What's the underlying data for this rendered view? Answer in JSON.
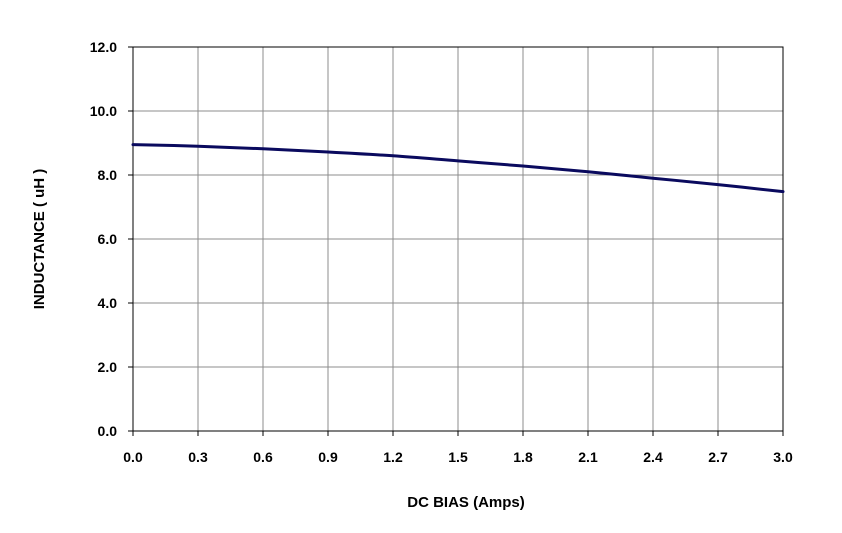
{
  "chart_data": {
    "type": "line",
    "title": "",
    "xlabel": "DC BIAS (Amps)",
    "ylabel": "INDUCTANCE ( uH )",
    "xlim": [
      0.0,
      3.0
    ],
    "ylim": [
      0.0,
      12.0
    ],
    "x_ticks": [
      "0.0",
      "0.3",
      "0.6",
      "0.9",
      "1.2",
      "1.5",
      "1.8",
      "2.1",
      "2.4",
      "2.7",
      "3.0"
    ],
    "y_ticks": [
      "0.0",
      "2.0",
      "4.0",
      "6.0",
      "8.0",
      "10.0",
      "12.0"
    ],
    "grid": true,
    "legend": "none",
    "series": [
      {
        "color": "#0a0a5e",
        "x": [
          0.0,
          0.3,
          0.6,
          0.9,
          1.2,
          1.5,
          1.8,
          2.1,
          2.4,
          2.7,
          3.0
        ],
        "y": [
          8.95,
          8.9,
          8.82,
          8.72,
          8.6,
          8.44,
          8.28,
          8.1,
          7.9,
          7.7,
          7.48
        ]
      }
    ]
  }
}
